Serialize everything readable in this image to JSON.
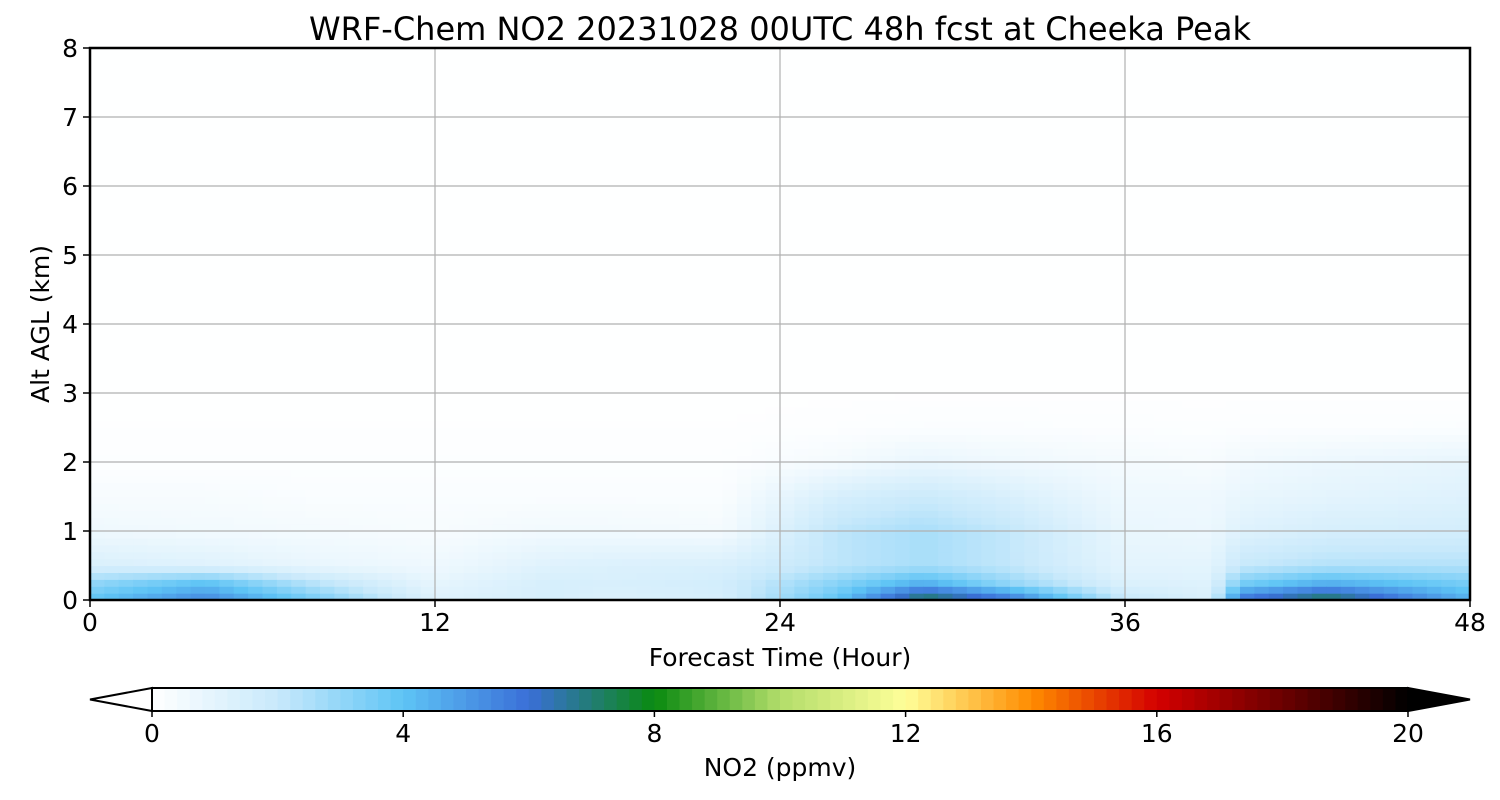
{
  "chart_data": {
    "type": "heatmap",
    "title": "WRF-Chem NO2  20231028 00UTC 48h fcst at Cheeka Peak",
    "xlabel": "Forecast Time (Hour)",
    "ylabel": "Alt AGL (km)",
    "xlim": [
      0,
      48
    ],
    "ylim": [
      0,
      8
    ],
    "xticks": [
      0,
      12,
      24,
      36,
      48
    ],
    "yticks": [
      0,
      1,
      2,
      3,
      4,
      5,
      6,
      7,
      8
    ],
    "grid": true,
    "colorbar": {
      "label": "NO2  (ppmv)",
      "range": [
        0,
        20
      ],
      "ticks": [
        0,
        4,
        8,
        12,
        16,
        20
      ],
      "extend": "both",
      "colors": [
        "#ffffff",
        "#c8e9fb",
        "#5ec4f5",
        "#3a6fd8",
        "#0a8a10",
        "#b2dd6a",
        "#ffff99",
        "#ff8c00",
        "#d40000",
        "#6b0000",
        "#000000"
      ]
    },
    "x": [
      0,
      4,
      8,
      12,
      16,
      18,
      22,
      26,
      29,
      32,
      36,
      39,
      40,
      43,
      48
    ],
    "y": [
      0,
      0.25,
      0.5,
      1.0,
      1.5,
      2.0,
      2.5,
      3.0,
      8.0
    ],
    "values": [
      [
        4.0,
        5.5,
        3.5,
        1.2,
        1.5,
        1.3,
        1.5,
        4.0,
        7.5,
        6.0,
        2.0,
        1.3,
        6.0,
        7.5,
        4.5
      ],
      [
        3.0,
        4.0,
        2.2,
        0.9,
        1.5,
        1.4,
        1.6,
        3.2,
        4.5,
        3.0,
        1.3,
        1.2,
        3.5,
        4.5,
        3.5
      ],
      [
        1.4,
        1.2,
        0.8,
        0.6,
        1.2,
        1.3,
        1.4,
        2.2,
        2.6,
        2.1,
        1.0,
        1.0,
        2.0,
        2.4,
        2.4
      ],
      [
        0.6,
        0.5,
        0.4,
        0.3,
        0.5,
        0.5,
        0.4,
        2.2,
        2.6,
        2.1,
        0.8,
        0.7,
        1.2,
        1.5,
        1.6
      ],
      [
        0.3,
        0.3,
        0.2,
        0.2,
        0.2,
        0.2,
        0.2,
        1.5,
        1.9,
        1.4,
        0.6,
        0.6,
        0.8,
        1.0,
        1.2
      ],
      [
        0.1,
        0.1,
        0.1,
        0.1,
        0.1,
        0.1,
        0.1,
        0.4,
        0.8,
        0.6,
        0.4,
        0.3,
        0.5,
        0.7,
        0.9
      ],
      [
        0.05,
        0.05,
        0.05,
        0.05,
        0.05,
        0.05,
        0.05,
        0.1,
        0.15,
        0.15,
        0.12,
        0.1,
        0.12,
        0.12,
        0.15
      ],
      [
        0.02,
        0.02,
        0.02,
        0.02,
        0.02,
        0.02,
        0.02,
        0.03,
        0.04,
        0.04,
        0.04,
        0.03,
        0.03,
        0.03,
        0.03
      ],
      [
        0.02,
        0.02,
        0.02,
        0.02,
        0.02,
        0.02,
        0.02,
        0.02,
        0.02,
        0.02,
        0.02,
        0.02,
        0.02,
        0.02,
        0.02
      ]
    ]
  }
}
